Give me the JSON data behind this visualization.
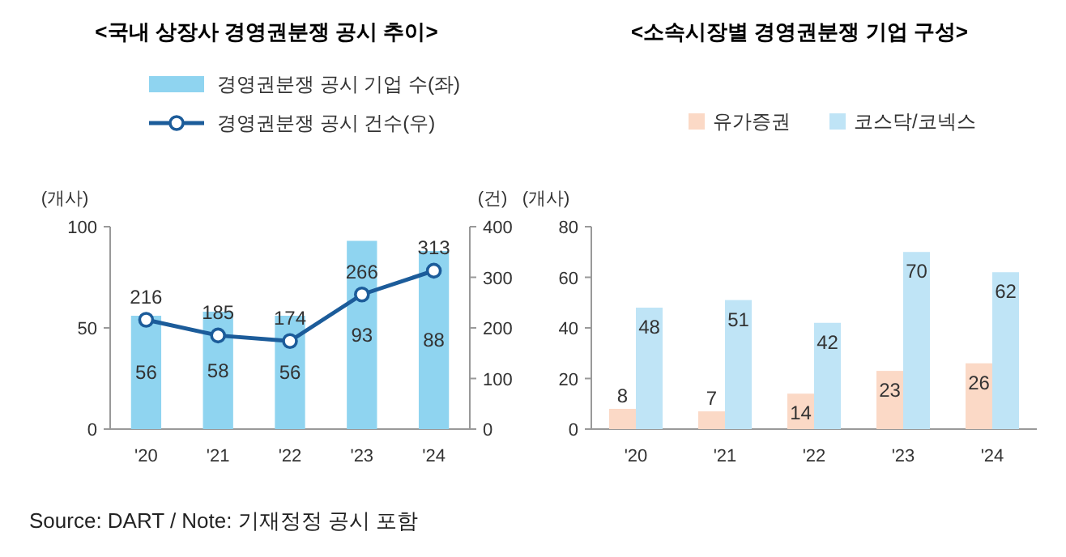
{
  "chart_data": [
    {
      "type": "bar",
      "title": "<국내 상장사 경영권분쟁 공시 추이>",
      "categories": [
        "'20",
        "'21",
        "'22",
        "'23",
        "'24"
      ],
      "ylabel": "(개사)",
      "y2label": "(건)",
      "ylim": [
        0,
        100
      ],
      "yticks": [
        0,
        50,
        100
      ],
      "y2lim": [
        0,
        400
      ],
      "y2ticks": [
        0,
        100,
        200,
        300,
        400
      ],
      "legend": "top",
      "data_labels": true,
      "marker": "circle",
      "grid": false,
      "series": [
        {
          "name": "경영권분쟁 공시 기업 수(좌)",
          "color": "#8fd4f0",
          "values": [
            56,
            58,
            56,
            93,
            88
          ]
        },
        {
          "name": "경영권분쟁 공시 건수(우)",
          "type": "line",
          "axis": "y2",
          "color": "#1c5c9a",
          "values": [
            216,
            185,
            174,
            266,
            313
          ]
        }
      ],
      "annotations": [
        "Source: DART / Note: 기재정정 공시 포함"
      ]
    },
    {
      "type": "bar",
      "title": "<소속시장별 경영권분쟁 기업 구성>",
      "categories": [
        "'20",
        "'21",
        "'22",
        "'23",
        "'24"
      ],
      "ylabel": "(개사)",
      "ylim": [
        0,
        80
      ],
      "yticks": [
        0,
        20,
        40,
        60,
        80
      ],
      "legend": "top",
      "data_labels": true,
      "grid": false,
      "series": [
        {
          "name": "유가증권",
          "color": "#fbd9c6",
          "values": [
            8,
            7,
            14,
            23,
            26
          ]
        },
        {
          "name": "코스닥/코넥스",
          "color": "#bfe4f6",
          "values": [
            48,
            51,
            42,
            70,
            62
          ]
        }
      ]
    }
  ]
}
